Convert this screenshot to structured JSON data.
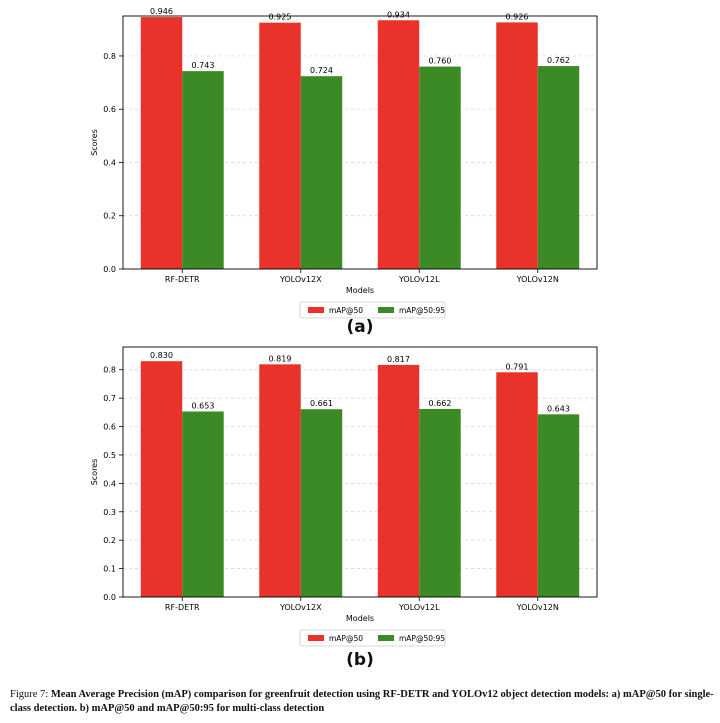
{
  "colors": {
    "map50": "#e8322a",
    "map5095": "#3c8a25"
  },
  "chart_data": [
    {
      "type": "bar",
      "panel_label": "(a)",
      "categories": [
        "RF-DETR",
        "YOLOv12X",
        "YOLOv12L",
        "YOLOv12N"
      ],
      "series": [
        {
          "name": "mAP@50",
          "values": [
            0.946,
            0.925,
            0.934,
            0.926
          ],
          "labels": [
            "0.946",
            "0.925",
            "0.934",
            "0.926"
          ]
        },
        {
          "name": "mAP@50:95",
          "values": [
            0.743,
            0.724,
            0.76,
            0.762
          ],
          "labels": [
            "0.743",
            "0.724",
            "0.760",
            "0.762"
          ]
        }
      ],
      "xlabel": "Models",
      "ylabel": "Scores",
      "ylim": [
        0,
        0.95
      ],
      "yticks": [
        "0.0",
        "0.2",
        "0.4",
        "0.6",
        "0.8"
      ],
      "grid": "horizontal dashed",
      "legend_position": "below"
    },
    {
      "type": "bar",
      "panel_label": "(b)",
      "categories": [
        "RF-DETR",
        "YOLOv12X",
        "YOLOv12L",
        "YOLOv12N"
      ],
      "series": [
        {
          "name": "mAP@50",
          "values": [
            0.83,
            0.819,
            0.817,
            0.791
          ],
          "labels": [
            "0.830",
            "0.819",
            "0.817",
            "0.791"
          ]
        },
        {
          "name": "mAP@50:95",
          "values": [
            0.653,
            0.661,
            0.662,
            0.643
          ],
          "labels": [
            "0.653",
            "0.661",
            "0.662",
            "0.643"
          ]
        }
      ],
      "xlabel": "Models",
      "ylabel": "Scores",
      "ylim": [
        0,
        0.88
      ],
      "yticks": [
        "0.0",
        "0.1",
        "0.2",
        "0.3",
        "0.4",
        "0.5",
        "0.6",
        "0.7",
        "0.8"
      ],
      "grid": "horizontal dashed",
      "legend_position": "below"
    }
  ],
  "caption": {
    "prefix": "Figure 7: ",
    "bold": "Mean Average Precision (mAP) comparison for greenfruit detection using RF-DETR and YOLOv12 object detection models: a) mAP@50 for single-class detection. b) mAP@50 and mAP@50:95 for multi-class detection"
  }
}
